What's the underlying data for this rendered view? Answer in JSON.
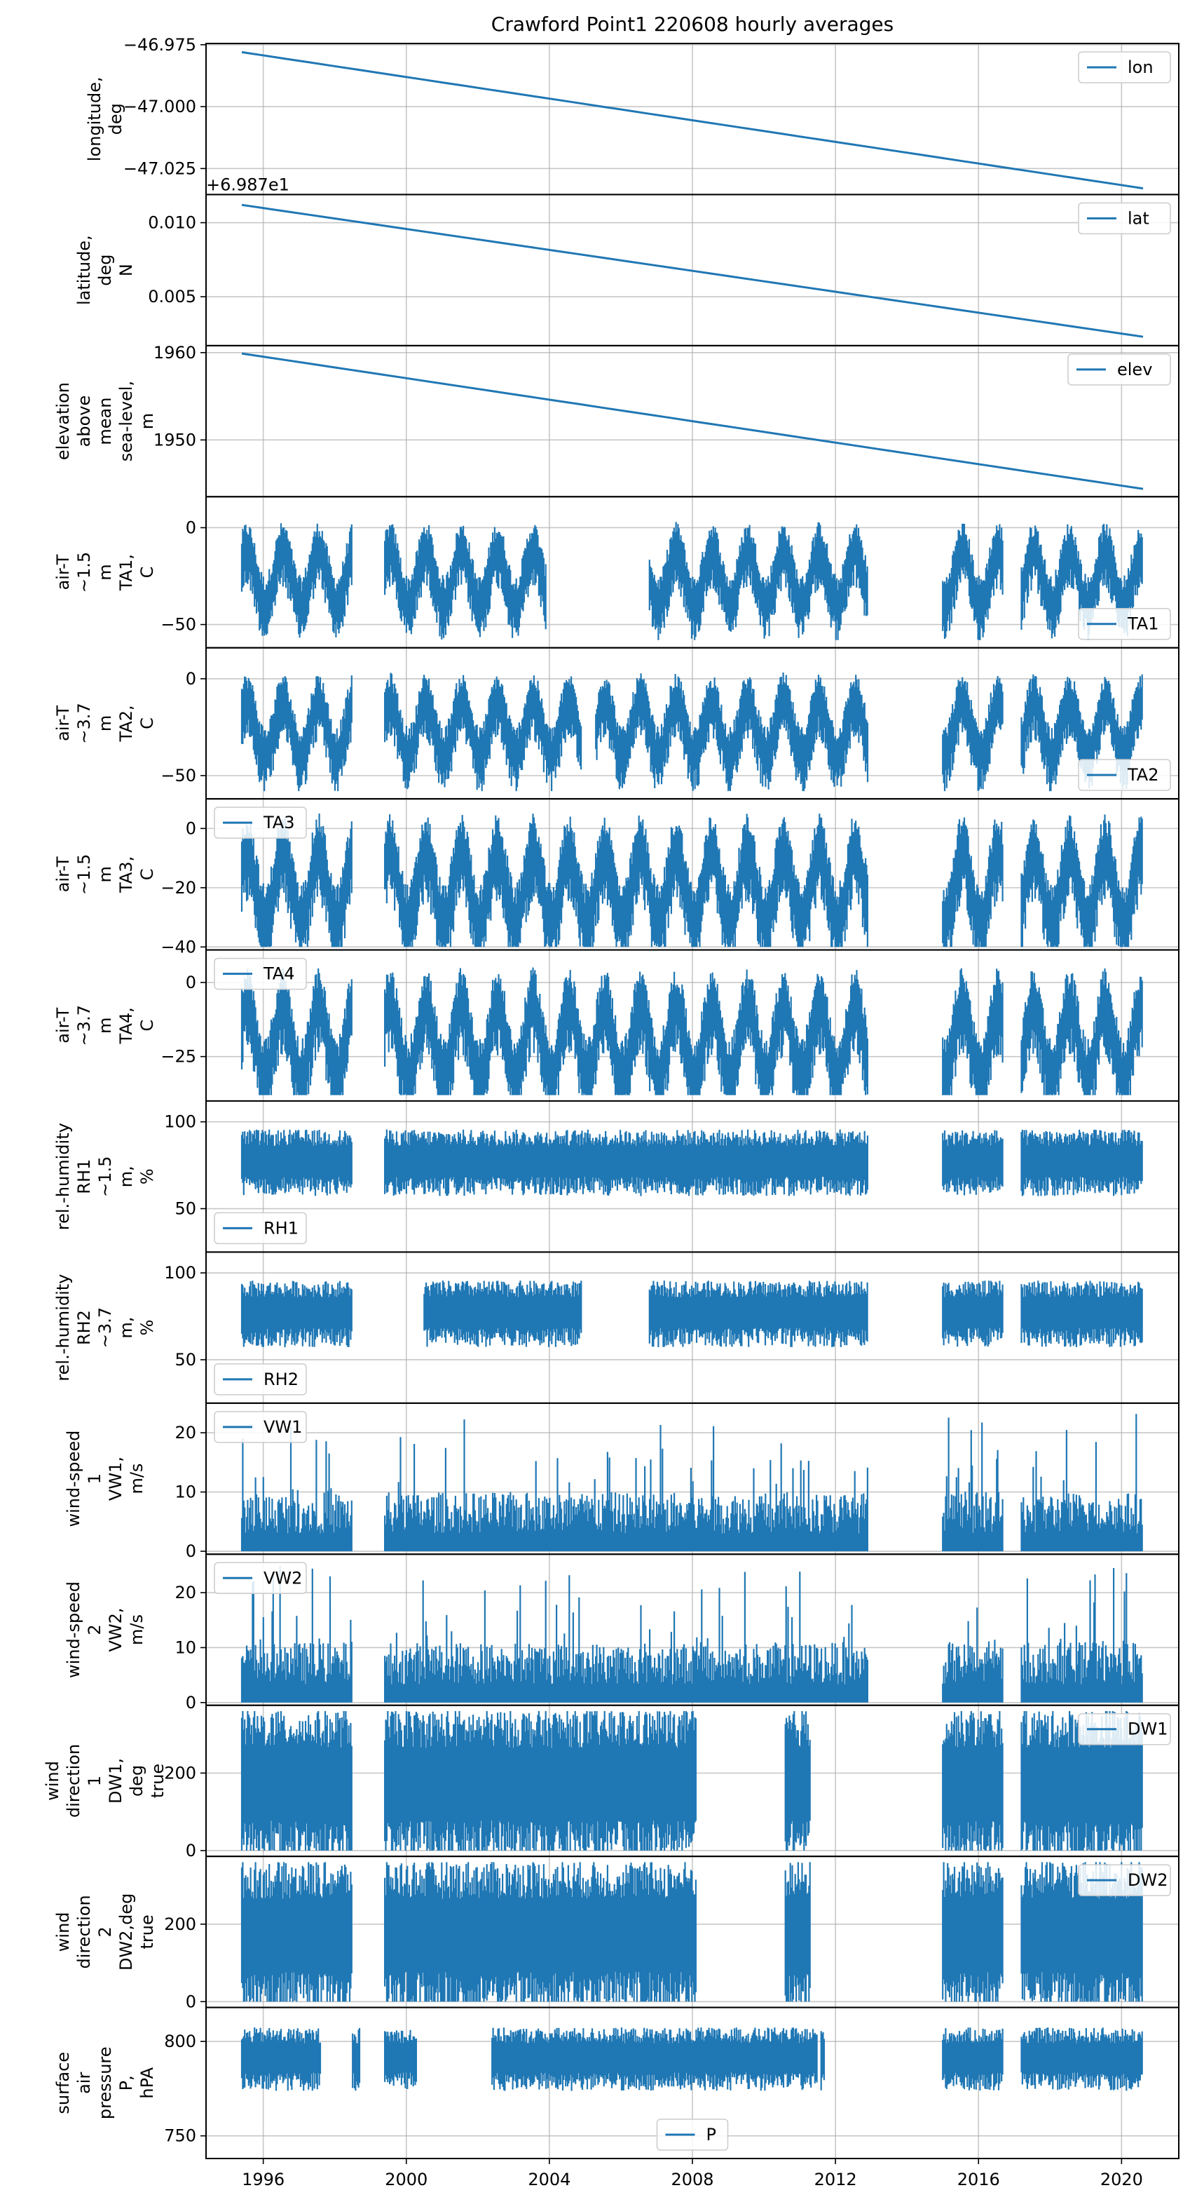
{
  "chart_data": {
    "type": "line",
    "title": "Crawford Point1 220608 hourly averages",
    "color": "#1f77b4",
    "xlim": [
      1994.4,
      2021.6
    ],
    "xticks": [
      1996,
      2000,
      2004,
      2008,
      2012,
      2016,
      2020
    ],
    "xtick_labels": [
      "1996",
      "2000",
      "2004",
      "2008",
      "2012",
      "2016",
      "2020"
    ],
    "grid": true,
    "panels": [
      {
        "id": "lon",
        "legend": "lon",
        "legend_loc": "upper-right",
        "ylabel": [
          "longitude,",
          "deg"
        ],
        "ylim": [
          -47.0355,
          -46.9745
        ],
        "yticks": [
          -46.975,
          -47.0,
          -47.025
        ],
        "ytick_labels": [
          "−46.975",
          "−47.000",
          "−47.025"
        ],
        "style": "line",
        "x": [
          1995.4,
          2020.6
        ],
        "y": [
          -46.978,
          -47.033
        ]
      },
      {
        "id": "lat",
        "legend": "lat",
        "legend_loc": "upper-right",
        "ylabel": [
          "latitude,",
          "deg",
          "N"
        ],
        "offset_text": "+6.987e1",
        "ylim": [
          0.0017,
          0.0119
        ],
        "yticks": [
          0.005,
          0.01
        ],
        "ytick_labels": [
          "0.005",
          "0.010"
        ],
        "style": "line",
        "x": [
          1995.4,
          2020.6
        ],
        "y": [
          0.0112,
          0.0023
        ]
      },
      {
        "id": "elev",
        "legend": "elev",
        "legend_loc": "upper-right",
        "ylabel": [
          "elevation",
          "above",
          "mean",
          "sea-level,",
          "m"
        ],
        "ylim": [
          1943.5,
          1960.8
        ],
        "yticks": [
          1950,
          1960
        ],
        "ytick_labels": [
          "1950",
          "1960"
        ],
        "style": "line",
        "x": [
          1995.4,
          2020.6
        ],
        "y": [
          1959.9,
          1944.4
        ]
      },
      {
        "id": "ta1",
        "legend": "TA1",
        "legend_loc": "lower-right",
        "ylabel": [
          "air-T",
          "~1.5",
          "m",
          "TA1,",
          "C"
        ],
        "ylim": [
          -62,
          16
        ],
        "yticks": [
          -50,
          0
        ],
        "ytick_labels": [
          "−50",
          "0"
        ],
        "style": "seasonal",
        "segments": [
          [
            1995.4,
            1998.5
          ],
          [
            1999.4,
            2003.9
          ],
          [
            2006.8,
            2012.9
          ],
          [
            2015.0,
            2016.7
          ],
          [
            2017.2,
            2020.6
          ]
        ],
        "base": -26,
        "amp": 14,
        "noise": 7,
        "ymin": -58,
        "ymax": 12
      },
      {
        "id": "ta2",
        "legend": "TA2",
        "legend_loc": "lower-right",
        "ylabel": [
          "air-T",
          "~3.7",
          "m",
          "TA2,",
          "C"
        ],
        "ylim": [
          -62,
          16
        ],
        "yticks": [
          -50,
          0
        ],
        "ytick_labels": [
          "−50",
          "0"
        ],
        "style": "seasonal",
        "segments": [
          [
            1995.4,
            1998.5
          ],
          [
            1999.4,
            2004.9
          ],
          [
            2005.3,
            2012.9
          ],
          [
            2015.0,
            2016.7
          ],
          [
            2017.2,
            2020.6
          ]
        ],
        "base": -26,
        "amp": 14,
        "noise": 7,
        "ymin": -58,
        "ymax": 12
      },
      {
        "id": "ta3",
        "legend": "TA3",
        "legend_loc": "upper-left",
        "ylabel": [
          "air-T",
          "~1.5",
          "m",
          "TA3,",
          "C"
        ],
        "ylim": [
          -41,
          10
        ],
        "yticks": [
          -40,
          -20,
          0
        ],
        "ytick_labels": [
          "−40",
          "−20",
          "0"
        ],
        "style": "seasonal",
        "segments": [
          [
            1995.4,
            1998.5
          ],
          [
            1999.4,
            2012.9
          ],
          [
            2015.0,
            2016.7
          ],
          [
            2017.2,
            2020.6
          ]
        ],
        "base": -20,
        "amp": 12,
        "noise": 6,
        "ymin": -40,
        "ymax": 8
      },
      {
        "id": "ta4",
        "legend": "TA4",
        "legend_loc": "upper-left",
        "ylabel": [
          "air-T",
          "~3.7",
          "m",
          "TA4,",
          "C"
        ],
        "ylim": [
          -40,
          11
        ],
        "yticks": [
          -25,
          0
        ],
        "ytick_labels": [
          "−25",
          "0"
        ],
        "style": "seasonal",
        "segments": [
          [
            1995.4,
            1998.5
          ],
          [
            1999.4,
            2012.9
          ],
          [
            2015.0,
            2016.7
          ],
          [
            2017.2,
            2020.6
          ]
        ],
        "base": -20,
        "amp": 12,
        "noise": 6,
        "ymin": -38,
        "ymax": 10
      },
      {
        "id": "rh1",
        "legend": "RH1",
        "legend_loc": "lower-left",
        "ylabel": [
          "rel.-humidity",
          "RH1",
          "~1.5",
          "m,",
          "%"
        ],
        "ylim": [
          25,
          112
        ],
        "yticks": [
          50,
          100
        ],
        "ytick_labels": [
          "50",
          "100"
        ],
        "style": "band",
        "segments": [
          [
            1995.4,
            1998.5
          ],
          [
            1999.4,
            2012.9
          ],
          [
            2015.0,
            2016.7
          ],
          [
            2017.2,
            2020.6
          ]
        ],
        "center": 78,
        "spread": 16,
        "ymin": 30,
        "ymax": 109
      },
      {
        "id": "rh2",
        "legend": "RH2",
        "legend_loc": "lower-left",
        "ylabel": [
          "rel.-humidity",
          "RH2",
          "~3.7",
          "m,",
          "%"
        ],
        "ylim": [
          25,
          112
        ],
        "yticks": [
          50,
          100
        ],
        "ytick_labels": [
          "50",
          "100"
        ],
        "style": "band",
        "segments": [
          [
            1995.4,
            1998.5
          ],
          [
            2000.5,
            2004.9
          ],
          [
            2006.8,
            2012.9
          ],
          [
            2015.0,
            2016.7
          ],
          [
            2017.2,
            2020.6
          ]
        ],
        "center": 78,
        "spread": 16,
        "ymin": 30,
        "ymax": 109
      },
      {
        "id": "vw1",
        "legend": "VW1",
        "legend_loc": "upper-left",
        "ylabel": [
          "wind-speed",
          "1",
          "VW1,",
          "m/s"
        ],
        "ylim": [
          -0.5,
          25
        ],
        "yticks": [
          0,
          10,
          20
        ],
        "ytick_labels": [
          "0",
          "10",
          "20"
        ],
        "style": "spiky",
        "segments": [
          [
            1995.4,
            1998.5
          ],
          [
            1999.4,
            2012.9
          ],
          [
            2015.0,
            2016.7
          ],
          [
            2017.2,
            2020.6
          ]
        ],
        "base": 0,
        "spread": 10,
        "ymax": 23.5
      },
      {
        "id": "vw2",
        "legend": "VW2",
        "legend_loc": "upper-left",
        "ylabel": [
          "wind-speed",
          "2",
          "VW2,",
          "m/s"
        ],
        "ylim": [
          -0.5,
          27
        ],
        "yticks": [
          0,
          10,
          20
        ],
        "ytick_labels": [
          "0",
          "10",
          "20"
        ],
        "style": "spiky",
        "segments": [
          [
            1995.4,
            1998.5
          ],
          [
            1999.4,
            2012.9
          ],
          [
            2015.0,
            2016.7
          ],
          [
            2017.2,
            2020.6
          ]
        ],
        "base": 0,
        "spread": 11,
        "ymax": 25
      },
      {
        "id": "dw1",
        "legend": "DW1",
        "legend_loc": "upper-right",
        "ylabel": [
          "wind",
          "direction",
          "1",
          "DW1,",
          "deg",
          "true"
        ],
        "ylim": [
          -15,
          375
        ],
        "yticks": [
          0,
          200
        ],
        "ytick_labels": [
          "0",
          "200"
        ],
        "style": "band",
        "segments": [
          [
            1995.4,
            1998.5
          ],
          [
            1999.4,
            2008.1
          ],
          [
            2010.6,
            2011.3
          ],
          [
            2015.0,
            2016.7
          ],
          [
            2017.2,
            2020.6
          ]
        ],
        "center": 180,
        "spread": 170,
        "ymin": 0,
        "ymax": 360
      },
      {
        "id": "dw2",
        "legend": "DW2",
        "legend_loc": "upper-right",
        "ylabel": [
          "wind",
          "direction",
          "2",
          "DW2,deg",
          "true"
        ],
        "ylim": [
          -15,
          375
        ],
        "yticks": [
          0,
          200
        ],
        "ytick_labels": [
          "0",
          "200"
        ],
        "style": "band",
        "segments": [
          [
            1995.4,
            1998.5
          ],
          [
            1999.4,
            2008.1
          ],
          [
            2010.6,
            2011.3
          ],
          [
            2015.0,
            2016.7
          ],
          [
            2017.2,
            2020.6
          ]
        ],
        "center": 180,
        "spread": 170,
        "ymin": 0,
        "ymax": 360
      },
      {
        "id": "p",
        "legend": "P",
        "legend_loc": "lower-center",
        "ylabel": [
          "surface",
          "air",
          "pressure",
          "P,",
          "hPA"
        ],
        "ylim": [
          738,
          818
        ],
        "yticks": [
          750,
          800
        ],
        "ytick_labels": [
          "750",
          "800"
        ],
        "style": "band",
        "segments": [
          [
            1995.4,
            1997.6
          ],
          [
            1998.5,
            1998.7
          ],
          [
            1999.4,
            2000.3
          ],
          [
            2002.4,
            2011.5
          ],
          [
            2011.6,
            2011.7
          ],
          [
            2015.0,
            2016.7
          ],
          [
            2017.2,
            2020.6
          ]
        ],
        "center": 792,
        "spread": 14,
        "ymin": 742,
        "ymax": 815
      }
    ]
  }
}
